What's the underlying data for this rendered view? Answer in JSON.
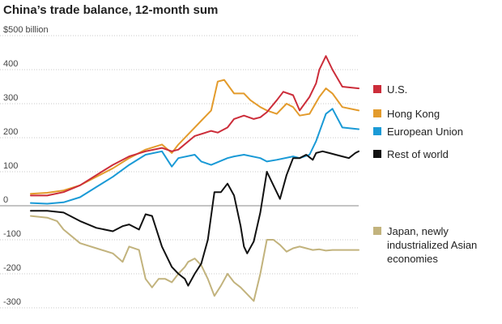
{
  "chart_data": {
    "type": "line",
    "title": "China’s trade balance, 12-month sum",
    "ylabel": "",
    "xlabel": "",
    "ylim": [
      -320,
      500
    ],
    "x_range": [
      0,
      100
    ],
    "y_ticks": [
      {
        "value": 500,
        "label": "$500 billion"
      },
      {
        "value": 400,
        "label": "400"
      },
      {
        "value": 300,
        "label": "300"
      },
      {
        "value": 200,
        "label": "200"
      },
      {
        "value": 100,
        "label": "100"
      },
      {
        "value": 0,
        "label": "0"
      },
      {
        "value": -100,
        "label": "-100"
      },
      {
        "value": -200,
        "label": "-200"
      },
      {
        "value": -300,
        "label": "-300"
      }
    ],
    "grid": true,
    "legend_position": "right",
    "series": [
      {
        "name": "U.S.",
        "color": "#cc2d3a",
        "x": [
          0,
          5,
          10,
          15,
          20,
          25,
          30,
          35,
          40,
          43,
          45,
          50,
          55,
          57,
          60,
          62,
          65,
          68,
          70,
          72,
          75,
          77,
          80,
          82,
          85,
          87,
          88,
          90,
          92,
          95,
          100
        ],
        "y": [
          30,
          30,
          40,
          60,
          90,
          120,
          145,
          160,
          170,
          160,
          165,
          205,
          220,
          215,
          230,
          255,
          265,
          255,
          260,
          275,
          310,
          335,
          325,
          280,
          320,
          360,
          400,
          440,
          400,
          350,
          345
        ]
      },
      {
        "name": "Hong Kong",
        "color": "#e39b2c",
        "x": [
          0,
          5,
          10,
          15,
          20,
          25,
          30,
          35,
          40,
          43,
          45,
          50,
          52,
          55,
          57,
          59,
          62,
          65,
          67,
          70,
          72,
          75,
          78,
          80,
          82,
          85,
          88,
          90,
          92,
          95,
          100
        ],
        "y": [
          35,
          38,
          45,
          60,
          85,
          110,
          140,
          165,
          180,
          155,
          180,
          230,
          250,
          280,
          365,
          370,
          330,
          330,
          310,
          290,
          280,
          270,
          300,
          290,
          265,
          270,
          320,
          345,
          330,
          290,
          280
        ]
      },
      {
        "name": "European Union",
        "color": "#1a9ad6",
        "x": [
          0,
          5,
          10,
          15,
          20,
          25,
          30,
          35,
          40,
          43,
          45,
          50,
          52,
          55,
          60,
          62,
          65,
          70,
          72,
          75,
          80,
          82,
          85,
          87,
          90,
          92,
          95,
          100
        ],
        "y": [
          8,
          6,
          10,
          25,
          55,
          85,
          120,
          150,
          160,
          115,
          140,
          150,
          130,
          120,
          140,
          145,
          150,
          140,
          130,
          135,
          145,
          140,
          150,
          190,
          270,
          285,
          230,
          225
        ]
      },
      {
        "name": "Rest of world",
        "color": "#111111",
        "x": [
          0,
          5,
          10,
          15,
          20,
          25,
          28,
          30,
          33,
          35,
          37,
          40,
          43,
          45,
          47,
          48,
          50,
          52,
          54,
          56,
          58,
          60,
          62,
          64,
          65,
          66,
          68,
          70,
          72,
          74,
          76,
          78,
          80,
          82,
          84,
          86,
          87,
          89,
          91,
          93,
          95,
          97,
          99,
          100
        ],
        "y": [
          -15,
          -15,
          -20,
          -45,
          -65,
          -75,
          -60,
          -55,
          -70,
          -25,
          -30,
          -120,
          -180,
          -200,
          -215,
          -235,
          -200,
          -170,
          -100,
          40,
          40,
          65,
          30,
          -60,
          -120,
          -140,
          -105,
          -20,
          100,
          60,
          20,
          90,
          140,
          140,
          150,
          135,
          155,
          160,
          155,
          150,
          145,
          140,
          155,
          160
        ]
      },
      {
        "name": "Japan, newly industrialized Asian economies",
        "color": "#c2b37d",
        "x": [
          0,
          5,
          8,
          10,
          15,
          20,
          25,
          28,
          30,
          33,
          35,
          37,
          39,
          41,
          43,
          45,
          47,
          48,
          50,
          52,
          54,
          56,
          58,
          60,
          62,
          64,
          66,
          68,
          70,
          72,
          74,
          76,
          78,
          80,
          82,
          84,
          86,
          88,
          90,
          92,
          95,
          98,
          100
        ],
        "y": [
          -30,
          -35,
          -45,
          -70,
          -110,
          -125,
          -140,
          -165,
          -120,
          -130,
          -215,
          -240,
          -215,
          -215,
          -225,
          -200,
          -180,
          -165,
          -155,
          -175,
          -215,
          -265,
          -235,
          -200,
          -225,
          -240,
          -260,
          -280,
          -200,
          -100,
          -100,
          -115,
          -135,
          -125,
          -120,
          -125,
          -130,
          -128,
          -132,
          -130,
          -130,
          -130,
          -130
        ]
      }
    ],
    "legend": [
      {
        "label": "U.S.",
        "color": "#cc2d3a"
      },
      {
        "label": "Hong Kong",
        "color": "#e39b2c"
      },
      {
        "label": "European Union",
        "color": "#1a9ad6"
      },
      {
        "label": "Rest of world",
        "color": "#111111"
      },
      {
        "label": "Japan, newly industrialized Asian economies",
        "lines": [
          "Japan, newly",
          "industrialized Asian",
          "economies"
        ],
        "color": "#c2b37d"
      }
    ]
  }
}
